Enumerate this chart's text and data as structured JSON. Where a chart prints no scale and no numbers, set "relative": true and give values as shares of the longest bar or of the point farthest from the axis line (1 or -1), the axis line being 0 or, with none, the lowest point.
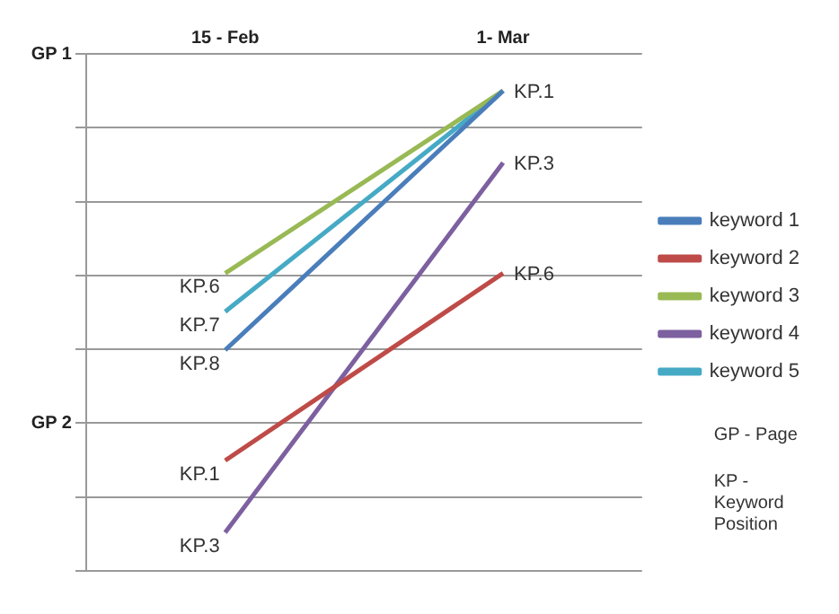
{
  "chart_data": {
    "type": "line",
    "relative": true,
    "categories": [
      "15 - Feb",
      "1- Mar"
    ],
    "series": [
      {
        "name": "keyword 1",
        "color": "#4a7ebb",
        "values": [
          0.46,
          1
        ]
      },
      {
        "name": "keyword 2",
        "color": "#be4b48",
        "values": [
          0.23,
          0.62
        ]
      },
      {
        "name": "keyword 3",
        "color": "#98b954",
        "values": [
          0.62,
          1
        ]
      },
      {
        "name": "keyword 4",
        "color": "#7d60a0",
        "values": [
          0.08,
          0.85
        ]
      },
      {
        "name": "keyword 5",
        "color": "#46aac5",
        "values": [
          0.54,
          1
        ]
      }
    ],
    "annotations": [
      "GP 1",
      "GP 2",
      {
        "text": "KP.6",
        "x": "15 - Feb",
        "y": 0.62
      },
      {
        "text": "KP.7",
        "x": "15 - Feb",
        "y": 0.54
      },
      {
        "text": "KP.8",
        "x": "15 - Feb",
        "y": 0.46
      },
      {
        "text": "KP.1",
        "x": "15 - Feb",
        "y": 0.23
      },
      {
        "text": "KP.3",
        "x": "15 - Feb",
        "y": 0.08
      },
      {
        "text": "KP.1",
        "x": "1- Mar",
        "y": 1
      },
      {
        "text": "KP.3",
        "x": "1- Mar",
        "y": 0.85
      },
      {
        "text": "KP.6",
        "x": "1- Mar",
        "y": 0.62
      },
      "GP - Page",
      "KP - Keyword Position"
    ],
    "grid": "y",
    "legend": "right",
    "marker": "none",
    "line_style": "solid"
  }
}
